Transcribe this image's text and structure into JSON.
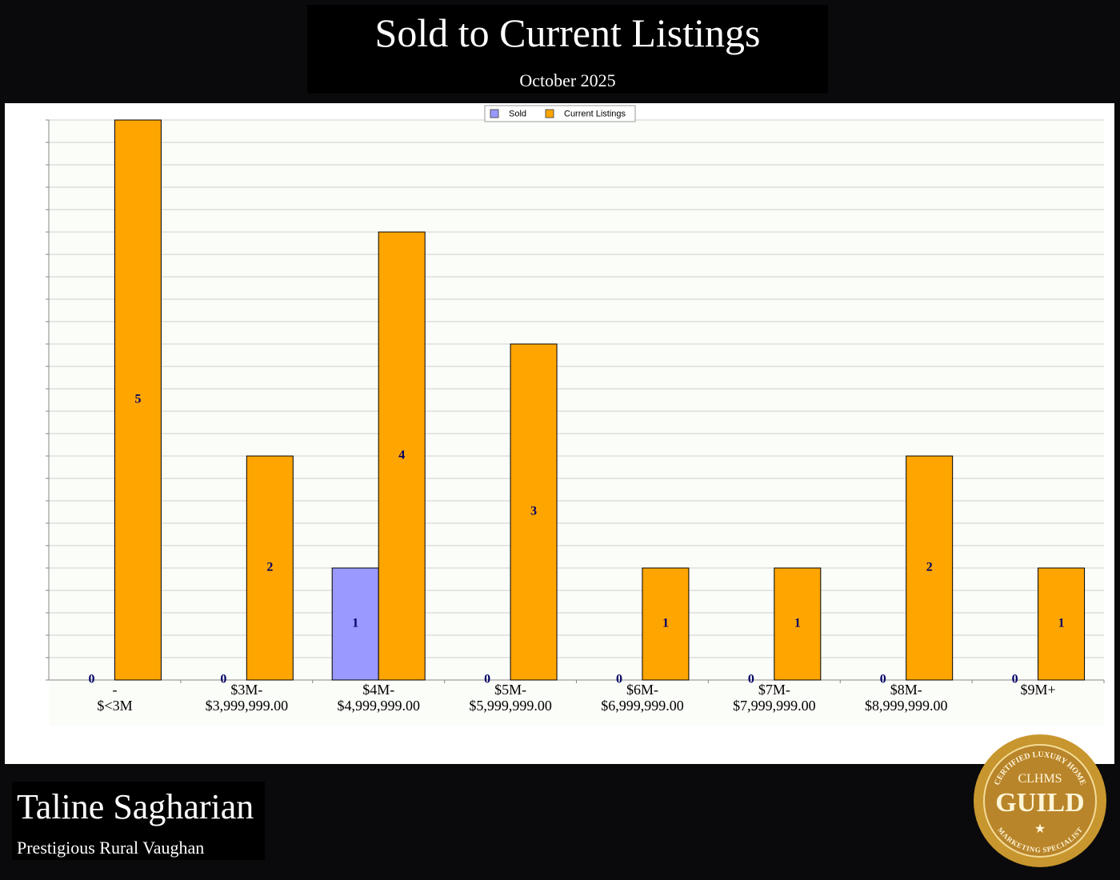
{
  "chart_data": {
    "type": "bar",
    "title": "Sold to Current Listings",
    "subtitle": "October 2025",
    "categories": [
      "-\n$<3M",
      "$3M-\n$3,999,999.00",
      "$4M-\n$4,999,999.00",
      "$5M-\n$5,999,999.00",
      "$6M-\n$6,999,999.00",
      "$7M-\n$7,999,999.00",
      "$8M-\n$8,999,999.00",
      "$9M+"
    ],
    "series": [
      {
        "name": "Sold",
        "color": "#9999ff",
        "values": [
          0,
          0,
          1,
          0,
          0,
          0,
          0,
          0
        ]
      },
      {
        "name": "Current Listings",
        "color": "#ffa500",
        "values": [
          5,
          2,
          4,
          3,
          1,
          1,
          2,
          1
        ]
      }
    ],
    "ylim": [
      0,
      5
    ],
    "yticks": [
      0,
      0.2,
      0.4,
      0.6,
      0.8,
      1,
      1.2,
      1.4,
      1.6,
      1.8,
      2,
      2.2,
      2.4,
      2.6,
      2.8,
      3,
      3.2,
      3.4,
      3.6,
      3.8,
      4,
      4.2,
      4.4,
      4.6,
      4.8,
      5
    ],
    "grid": true,
    "legend": "top"
  },
  "footer": {
    "name": "Taline Sagharian",
    "area": "Prestigious Rural Vaughan"
  },
  "badge": {
    "top": "CERTIFIED LUXURY HOME",
    "mid": "CLHMS",
    "main": "GUILD",
    "bottom": "MARKETING SPECIALIST"
  }
}
